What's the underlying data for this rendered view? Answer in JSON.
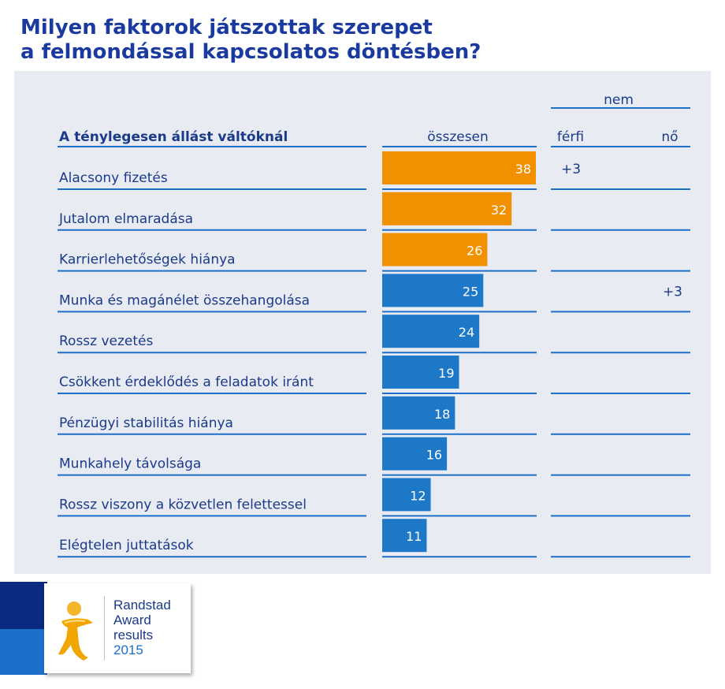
{
  "title": {
    "line1": "Milyen faktorok játszottak szerepet",
    "line2": "a felmondással kapcsolatos döntésben?"
  },
  "table": {
    "row_header": "A ténylegesen állást váltóknál",
    "col_total": "összesen",
    "col_group": "nem",
    "col_male": "férfi",
    "col_female": "nő"
  },
  "colors": {
    "highlight": "#f29100",
    "default": "#1d78c8",
    "title": "#1a3aa0",
    "label": "#1a3a8a",
    "panel": "#e8ebf2",
    "line": "#1d6fc9"
  },
  "chart_data": {
    "type": "bar",
    "orientation": "horizontal",
    "categories": [
      "Alacsony fizetés",
      "Jutalom elmaradása",
      "Karrierlehetőségek hiánya",
      "Munka és magánélet összehangolása",
      "Rossz vezetés",
      "Csökkent érdeklődés a feladatok iránt",
      "Pénzügyi stabilitás hiánya",
      "Munkahely távolsága",
      "Rossz viszony a közvetlen felettessel",
      "Elégtelen juttatások"
    ],
    "values": [
      38,
      32,
      26,
      25,
      24,
      19,
      18,
      16,
      12,
      11
    ],
    "highlighted": [
      true,
      true,
      true,
      false,
      false,
      false,
      false,
      false,
      false,
      false
    ],
    "male_diff": [
      "+3",
      "",
      "",
      "",
      "",
      "",
      "",
      "",
      "",
      ""
    ],
    "female_diff": [
      "",
      "",
      "",
      "+3",
      "",
      "",
      "",
      "",
      "",
      ""
    ],
    "xlim": [
      0,
      38
    ],
    "grid": false
  },
  "badge": {
    "line1": "Randstad",
    "line2": "Award",
    "line3": "results",
    "year": "2015",
    "icon": "randstad-figure-icon"
  }
}
